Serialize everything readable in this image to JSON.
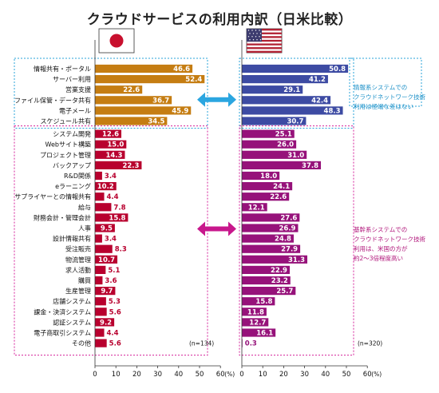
{
  "title": "クラウドサービスの利用内訳（日米比較）",
  "colors": {
    "japan_group1": "#c57d12",
    "japan_group2": "#b8002e",
    "us_group1": "#3d4ba3",
    "us_group2": "#96127a",
    "box_group1": "#29a3d8",
    "box_group2": "#d4209a",
    "arrow_group1": "#2ba6e0",
    "arrow_group2": "#c8178c"
  },
  "notes": {
    "group1": "情報系システムでの\nクラウドネットワーク技術\n利用は極端な差はない",
    "group2": "基幹系システムでの\nクラウドネットワーク技術\n利用は、米国の方が\n約2～3倍程度高い"
  },
  "flags": [
    "japan-flag",
    "us-flag"
  ],
  "chart_data": {
    "type": "bar",
    "orientation": "horizontal",
    "unit": "(%)",
    "categories": [
      "情報共有・ポータル",
      "サーバー利用",
      "営業支援",
      "ファイル保管・データ共有",
      "電子メール",
      "スケジュール共有",
      "システム開発",
      "Webサイト構築",
      "プロジェクト管理",
      "バックアップ",
      "R&D関係",
      "eラーニング",
      "サプライヤーとの情報共有",
      "給与",
      "財務会計・管理会計",
      "人事",
      "設計情報共有",
      "受注販売",
      "物流管理",
      "求人活動",
      "購買",
      "生産管理",
      "店舗システム",
      "課金・決済システム",
      "認証システム",
      "電子商取引システム",
      "その他"
    ],
    "series": [
      {
        "values": [
          46.6,
          52.4,
          22.6,
          36.7,
          45.9,
          34.5,
          12.6,
          15.0,
          14.3,
          22.3,
          3.4,
          10.2,
          4.4,
          7.8,
          15.8,
          9.5,
          3.4,
          8.3,
          10.7,
          5.1,
          3.6,
          9.7,
          5.3,
          5.6,
          9.2,
          4.4,
          5.6
        ],
        "n_label": "(n=134)"
      },
      {
        "values": [
          50.8,
          41.2,
          29.1,
          42.4,
          48.3,
          30.7,
          25.1,
          26.0,
          31.0,
          37.8,
          18.0,
          24.1,
          22.6,
          12.1,
          27.6,
          26.9,
          24.8,
          27.9,
          31.3,
          22.9,
          23.2,
          25.7,
          15.8,
          11.8,
          12.7,
          16.1,
          0.3
        ],
        "n_label": "(n=320)"
      }
    ],
    "value_labels": [
      [
        "46.6",
        "52.4",
        "22.6",
        "36.7",
        "45.9",
        "34.5",
        "12.6",
        "15.0",
        "14.3",
        "22.3",
        "3.4",
        "10.2",
        "4.4",
        "7.8",
        "15.8",
        "9.5",
        "3.4",
        "8.3",
        "10.7",
        "5.1",
        "3.6",
        "9.7",
        "5.3",
        "5.6",
        "9.2",
        "4.4",
        "5.6"
      ],
      [
        "50.8",
        "41.2",
        "29.1",
        "42.4",
        "48.3",
        "30.7",
        "25.1",
        "26.0",
        "31.0",
        "37.8",
        "18.0",
        "24.1",
        "22.6",
        "12.1",
        "27.6",
        "26.9",
        "24.8",
        "27.9",
        "31.3",
        "22.9",
        "23.2",
        "25.7",
        "15.8",
        "11.8",
        "12.7",
        "16.1",
        "0.3"
      ]
    ],
    "group_sizes": [
      6,
      21
    ],
    "xlim": [
      0,
      60
    ],
    "xticks": [
      "0",
      "10",
      "20",
      "30",
      "40",
      "50",
      "60"
    ],
    "grid": false,
    "legend": "none"
  }
}
